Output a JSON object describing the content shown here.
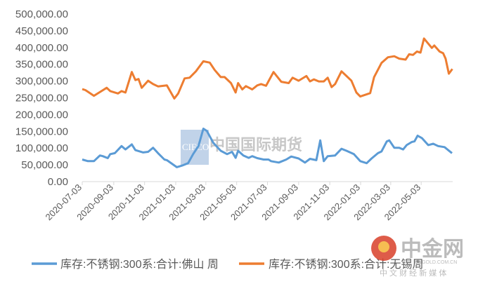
{
  "chart_data": {
    "type": "line",
    "title": "",
    "xlabel": "",
    "ylabel": "",
    "x_unit": "weeks since 2020-07-03",
    "xlim": [
      0,
      104.6
    ],
    "ylim": [
      0,
      500000
    ],
    "grid": false,
    "legend_position": "bottom",
    "y_ticks": [
      0,
      50000,
      100000,
      150000,
      200000,
      250000,
      300000,
      350000,
      400000,
      450000,
      500000
    ],
    "y_tick_labels": [
      "0.00",
      "50,000.00",
      "100,000.00",
      "150,000.00",
      "200,000.00",
      "250,000.00",
      "300,000.00",
      "350,000.00",
      "400,000.00",
      "450,000.00",
      "500,000.00"
    ],
    "x_ticks": [
      0,
      8.9,
      17.6,
      26.4,
      34.9,
      43.6,
      52.3,
      61.1,
      69.9,
      78.6,
      87.1,
      95.7
    ],
    "x_tick_labels": [
      "2020-07-03",
      "2020-09-03",
      "2020-11-03",
      "2021-01-03",
      "2021-03-03",
      "2021-05-03",
      "2021-07-03",
      "2021-09-03",
      "2021-11-03",
      "2022-01-03",
      "2022-03-03",
      "2022-05-03"
    ],
    "series": [
      {
        "name": "库存:不锈钢:300系:合计:佛山 周",
        "color": "#5B9BD5",
        "x": [
          0,
          1.6,
          3.3,
          5.0,
          5.8,
          7.2,
          7.9,
          9.2,
          11.1,
          12.2,
          14.0,
          15.0,
          17.2,
          18.6,
          20.0,
          21.4,
          23.2,
          23.9,
          26.7,
          28.2,
          29.9,
          31.3,
          32.8,
          34.2,
          35.2,
          37.0,
          39.1,
          40.9,
          42.3,
          43.3,
          44.0,
          45.5,
          47.0,
          48.0,
          49.4,
          51.2,
          52.6,
          53.3,
          55.5,
          57.6,
          59.0,
          61.1,
          62.9,
          64.3,
          66.1,
          67.2,
          68.2,
          69.3,
          71.4,
          73.2,
          74.6,
          76.7,
          78.5,
          80.3,
          81.7,
          83.5,
          84.5,
          86.0,
          86.7,
          88.1,
          89.5,
          90.6,
          91.6,
          93.0,
          93.8,
          94.7,
          95.9,
          97.7,
          99.1,
          100.5,
          102.3,
          104.4
        ],
        "y": [
          66000,
          61000,
          61000,
          78000,
          76000,
          70000,
          82000,
          85000,
          106000,
          96000,
          111000,
          94000,
          87000,
          89000,
          101000,
          85000,
          66000,
          64000,
          43000,
          48000,
          55000,
          82000,
          106000,
          158000,
          151000,
          116000,
          92000,
          82000,
          89000,
          71000,
          92000,
          78000,
          71000,
          76000,
          70000,
          66000,
          66000,
          61000,
          57000,
          66000,
          75000,
          69000,
          57000,
          68000,
          64000,
          123000,
          61000,
          76000,
          78000,
          98000,
          92000,
          82000,
          61000,
          55000,
          69000,
          85000,
          90000,
          120000,
          123000,
          101000,
          101000,
          96000,
          109000,
          118000,
          120000,
          137000,
          130000,
          109000,
          113000,
          106000,
          103000,
          85000
        ]
      },
      {
        "name": "库存:不锈钢:300系:合计:无锡周",
        "color": "#ED7D31",
        "x": [
          0,
          0.9,
          3.3,
          6.9,
          7.9,
          10.1,
          11.1,
          12.2,
          14.0,
          15.0,
          15.9,
          16.8,
          18.6,
          20.0,
          21.4,
          23.9,
          26.0,
          27.1,
          28.9,
          30.3,
          32.1,
          34.2,
          36.0,
          37.4,
          39.1,
          40.2,
          42.0,
          43.3,
          44.0,
          45.2,
          46.2,
          48.0,
          49.4,
          50.5,
          51.9,
          54.0,
          56.2,
          58.3,
          59.4,
          61.1,
          63.3,
          64.3,
          65.4,
          66.8,
          68.2,
          69.3,
          70.4,
          71.4,
          73.2,
          74.6,
          76.0,
          77.4,
          78.5,
          79.9,
          81.3,
          82.4,
          84.5,
          86.3,
          88.1,
          89.5,
          91.3,
          92.3,
          93.4,
          94.5,
          95.5,
          96.5,
          98.7,
          99.4,
          100.9,
          101.9,
          102.6,
          103.5,
          104.5
        ],
        "y": [
          276000,
          273000,
          256000,
          280000,
          270000,
          263000,
          270000,
          266000,
          327000,
          303000,
          306000,
          280000,
          301000,
          291000,
          284000,
          287000,
          248000,
          263000,
          308000,
          310000,
          329000,
          359000,
          355000,
          333000,
          312000,
          312000,
          294000,
          266000,
          294000,
          275000,
          285000,
          275000,
          287000,
          291000,
          286000,
          327000,
          298000,
          294000,
          310000,
          301000,
          315000,
          299000,
          305000,
          299000,
          299000,
          310000,
          282000,
          291000,
          329000,
          315000,
          301000,
          266000,
          254000,
          259000,
          264000,
          312000,
          354000,
          371000,
          374000,
          367000,
          364000,
          380000,
          378000,
          388000,
          385000,
          427000,
          399000,
          406000,
          388000,
          383000,
          367000,
          322000,
          336000
        ]
      }
    ]
  },
  "watermark": {
    "brand_cn": "中国国际期货",
    "brand_en": "CIFCO"
  },
  "logo": {
    "name": "中金网",
    "domain": "CNGOLD.COM.CN",
    "tagline": "中 文 财 经 新 媒 体"
  }
}
